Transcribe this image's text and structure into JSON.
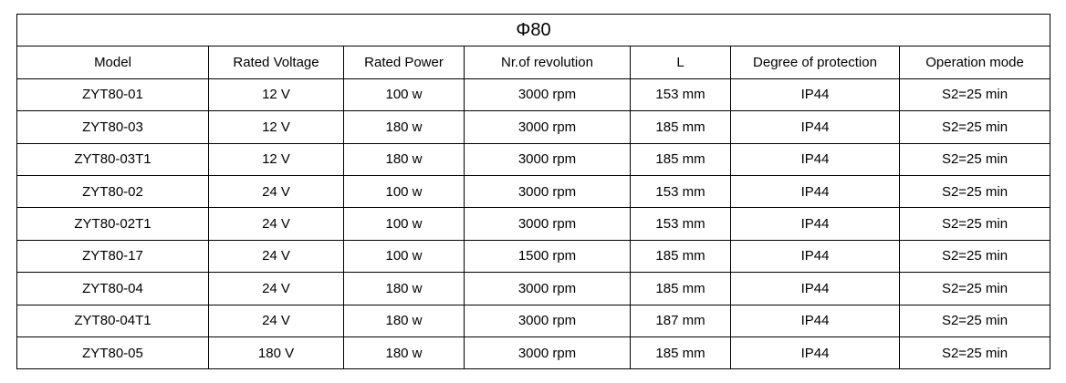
{
  "table": {
    "title": "Φ80",
    "header": [
      "Model",
      "Rated Voltage",
      "Rated Power",
      "Nr.of revolution",
      "L",
      "Degree of protection",
      "Operation mode"
    ],
    "rows": [
      [
        "ZYT80-01",
        "12 V",
        "100 w",
        "3000 rpm",
        "153 mm",
        "IP44",
        "S2=25 min"
      ],
      [
        "ZYT80-03",
        "12 V",
        "180 w",
        "3000 rpm",
        "185 mm",
        "IP44",
        "S2=25 min"
      ],
      [
        "ZYT80-03T1",
        "12 V",
        "180 w",
        "3000 rpm",
        "185 mm",
        "IP44",
        "S2=25 min"
      ],
      [
        "ZYT80-02",
        "24 V",
        "100 w",
        "3000 rpm",
        "153 mm",
        "IP44",
        "S2=25 min"
      ],
      [
        "ZYT80-02T1",
        "24 V",
        "100 w",
        "3000 rpm",
        "153 mm",
        "IP44",
        "S2=25 min"
      ],
      [
        "ZYT80-17",
        "24 V",
        "100 w",
        "1500 rpm",
        "185 mm",
        "IP44",
        "S2=25 min"
      ],
      [
        "ZYT80-04",
        "24 V",
        "180 w",
        "3000 rpm",
        "185 mm",
        "IP44",
        "S2=25 min"
      ],
      [
        "ZYT80-04T1",
        "24 V",
        "180 w",
        "3000 rpm",
        "187 mm",
        "IP44",
        "S2=25 min"
      ],
      [
        "ZYT80-05",
        "180 V",
        "180 w",
        "3000 rpm",
        "185 mm",
        "IP44",
        "S2=25 min"
      ]
    ]
  }
}
